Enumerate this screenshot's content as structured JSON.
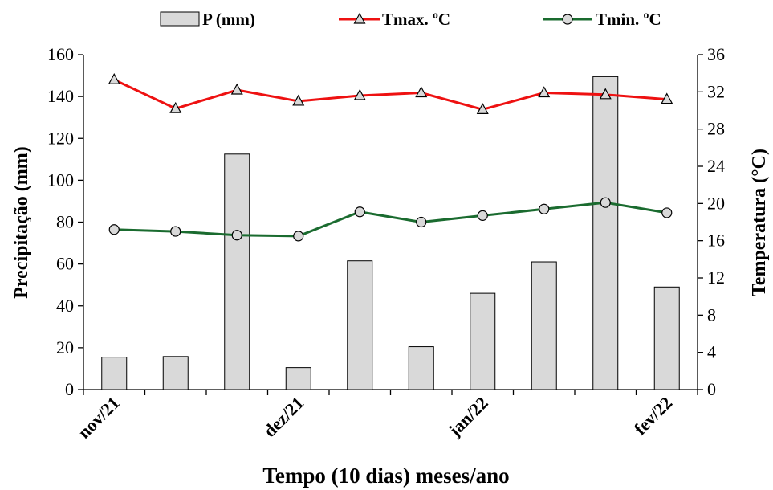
{
  "chart_data": {
    "type": "bar+line",
    "x_categories": [
      "",
      "",
      "",
      "",
      "",
      "",
      "",
      "",
      "",
      ""
    ],
    "x_tick_labels": [
      {
        "index": 0,
        "label": "nov/21"
      },
      {
        "index": 3,
        "label": "dez/21"
      },
      {
        "index": 6,
        "label": "jan/22"
      },
      {
        "index": 9,
        "label": "fev/22"
      }
    ],
    "xlabel": "Tempo (10 dias) meses/ano",
    "ylabel_left": "Precipitação  (mm)",
    "ylabel_right": "Temperatura (°C)",
    "ylim_left": [
      0,
      160
    ],
    "yticks_left": [
      0,
      20,
      40,
      60,
      80,
      100,
      120,
      140,
      160
    ],
    "ylim_right": [
      0,
      36
    ],
    "yticks_right": [
      0,
      4,
      8,
      12,
      16,
      20,
      24,
      28,
      32,
      36
    ],
    "grid": false,
    "legend_position": "top",
    "series": [
      {
        "name": "P (mm)",
        "type": "bar",
        "axis": "left",
        "color": "#d9d9d9",
        "edge_color": "#000000",
        "values": [
          15.5,
          15.8,
          112.5,
          10.5,
          61.5,
          20.5,
          46,
          61,
          149.5,
          49
        ]
      },
      {
        "name": "Tmax. ºC",
        "type": "line",
        "axis": "right",
        "color": "#ee1111",
        "marker": "triangle",
        "values": [
          33.3,
          30.2,
          32.2,
          31.0,
          31.6,
          31.9,
          30.1,
          31.9,
          31.7,
          31.2
        ]
      },
      {
        "name": "Tmin. ºC",
        "type": "line",
        "axis": "right",
        "color": "#1a6b2f",
        "marker": "circle",
        "values": [
          17.2,
          17.0,
          16.6,
          16.5,
          19.1,
          18.0,
          18.7,
          19.4,
          20.1,
          19.0
        ]
      }
    ]
  }
}
